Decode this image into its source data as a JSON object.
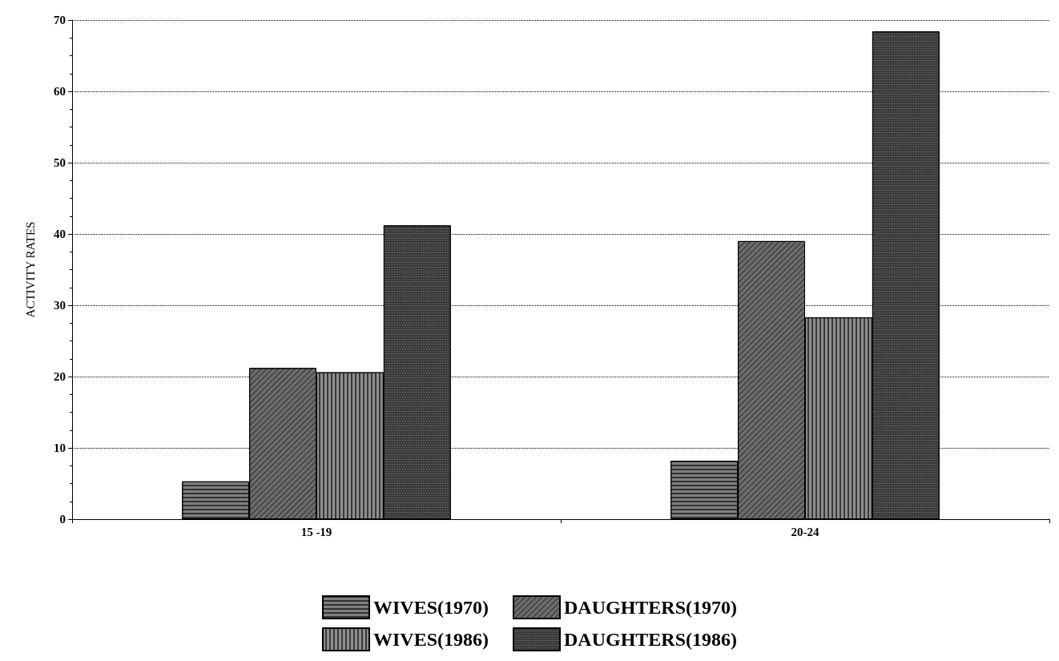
{
  "chart_data": {
    "type": "bar",
    "ylabel": "ACTIVITY RATES",
    "categories": [
      "15 -19",
      "20-24"
    ],
    "series": [
      {
        "name": "WIVES(1970)",
        "color": "#7f7f7f",
        "values": [
          5.3,
          8.2
        ]
      },
      {
        "name": "DAUGHTERS(1970)",
        "color": "#6f6f6f",
        "values": [
          21.2,
          39.0
        ]
      },
      {
        "name": "WIVES(1986)",
        "color": "#8f8f8f",
        "values": [
          20.6,
          28.3
        ]
      },
      {
        "name": "DAUGHTERS(1986)",
        "color": "#3a3a3a",
        "values": [
          41.2,
          68.4
        ]
      }
    ],
    "ylim": [
      0,
      70
    ],
    "yticks": [
      0,
      10,
      20,
      30,
      40,
      50,
      60,
      70
    ],
    "grid": "y",
    "legend": "bottom"
  }
}
